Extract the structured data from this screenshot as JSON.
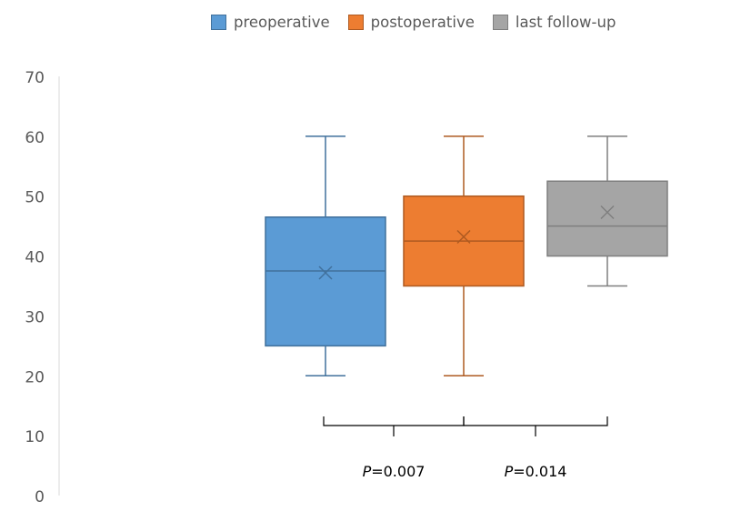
{
  "chart_data": {
    "type": "box",
    "title": "",
    "xlabel": "",
    "ylabel": "",
    "ylim": [
      0,
      70
    ],
    "yticks": [
      0,
      10,
      20,
      30,
      40,
      50,
      60,
      70
    ],
    "grid": false,
    "legend_position": "top",
    "series": [
      {
        "name": "preoperative",
        "color": "#5B9BD5",
        "stroke": "#41719C",
        "min": 20,
        "q1": 25,
        "median": 37.5,
        "q3": 46.5,
        "max": 60,
        "mean": 37.2
      },
      {
        "name": "postoperative",
        "color": "#ED7D31",
        "stroke": "#AE5A21",
        "min": 20,
        "q1": 35,
        "median": 42.5,
        "q3": 50,
        "max": 60,
        "mean": 43.2
      },
      {
        "name": "last follow-up",
        "color": "#A5A5A5",
        "stroke": "#7F7F7F",
        "min": 35,
        "q1": 40,
        "median": 45,
        "q3": 52.5,
        "max": 60,
        "mean": 47.3
      }
    ],
    "annotations": [
      {
        "between": [
          "preoperative",
          "postoperative"
        ],
        "prefix": "P",
        "text": "=0.007"
      },
      {
        "between": [
          "postoperative",
          "last follow-up"
        ],
        "prefix": "P",
        "text": "=0.014"
      }
    ]
  }
}
